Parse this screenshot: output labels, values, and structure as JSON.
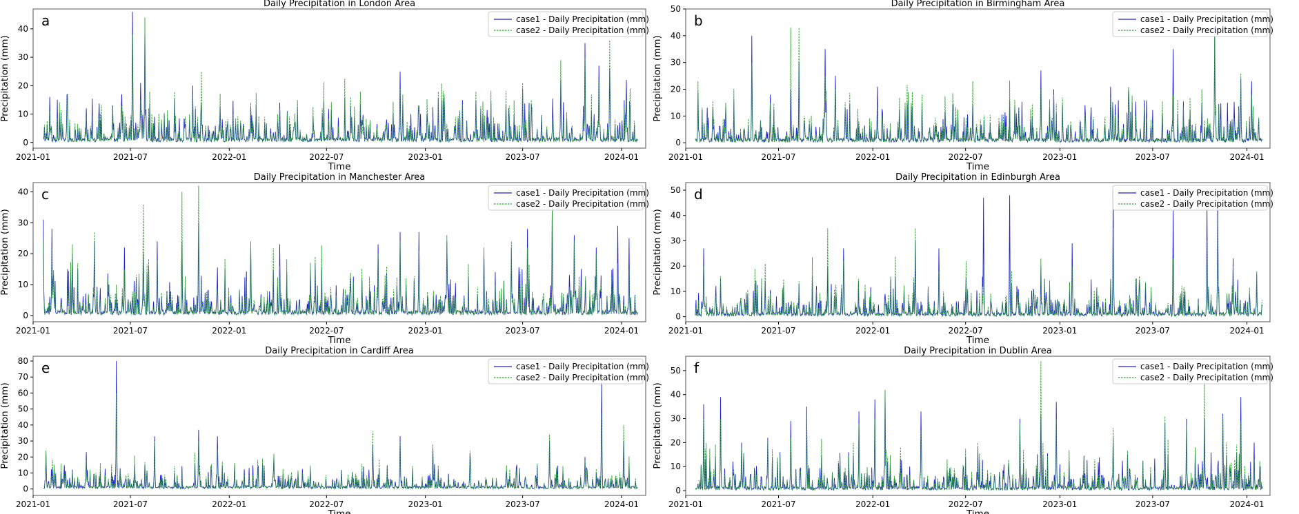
{
  "figure": {
    "xlabel": "Time",
    "ylabel": "Precipitation (mm)",
    "x_ticks": [
      "2021-01",
      "2021-07",
      "2022-01",
      "2022-07",
      "2023-01",
      "2023-07",
      "2024-01"
    ],
    "colors": {
      "case1": "#1f1fd6",
      "case2": "#2ca02c",
      "axes": "#555555"
    }
  },
  "chart_data": [
    {
      "panel": "a",
      "type": "line",
      "title": "Daily Precipitation in London Area",
      "xlabel": "Time",
      "ylabel": "Precipitation (mm)",
      "xlim": [
        "2021-01-01",
        "2024-02-15"
      ],
      "ylim": [
        -2,
        47
      ],
      "y_ticks": [
        0,
        10,
        20,
        30,
        40
      ],
      "legend": [
        "case1 - Daily Precipitation (mm)",
        "case2 - Daily Precipitation (mm)"
      ],
      "peaks": [
        {
          "date": "2021-02-01",
          "case1": 16,
          "case2": 11
        },
        {
          "date": "2021-03-05",
          "case1": 17,
          "case2": 14
        },
        {
          "date": "2021-04-10",
          "case1": 12,
          "case2": 9
        },
        {
          "date": "2021-06-15",
          "case1": 17,
          "case2": 13
        },
        {
          "date": "2021-07-05",
          "case1": 46,
          "case2": 38
        },
        {
          "date": "2021-07-20",
          "case1": 21,
          "case2": 15
        },
        {
          "date": "2021-07-28",
          "case1": 38,
          "case2": 44
        },
        {
          "date": "2021-10-25",
          "case1": 20,
          "case2": 17
        },
        {
          "date": "2021-11-10",
          "case1": 14,
          "case2": 25
        },
        {
          "date": "2022-02-10",
          "case1": 13,
          "case2": 14
        },
        {
          "date": "2022-04-05",
          "case1": 14,
          "case2": 12
        },
        {
          "date": "2022-08-15",
          "case1": 13,
          "case2": 16
        },
        {
          "date": "2022-11-15",
          "case1": 25,
          "case2": 19
        },
        {
          "date": "2022-12-20",
          "case1": 13,
          "case2": 12
        },
        {
          "date": "2023-02-05",
          "case1": 16,
          "case2": 17
        },
        {
          "date": "2023-04-05",
          "case1": 15,
          "case2": 18
        },
        {
          "date": "2023-06-05",
          "case1": 12,
          "case2": 10
        },
        {
          "date": "2023-07-01",
          "case1": 19,
          "case2": 21
        },
        {
          "date": "2023-09-10",
          "case1": 22,
          "case2": 29
        },
        {
          "date": "2023-10-25",
          "case1": 35,
          "case2": 30
        },
        {
          "date": "2023-11-20",
          "case1": 27,
          "case2": 22
        },
        {
          "date": "2023-12-10",
          "case1": 26,
          "case2": 36
        },
        {
          "date": "2024-01-10",
          "case1": 22,
          "case2": 15
        }
      ]
    },
    {
      "panel": "b",
      "type": "line",
      "title": "Daily Precipitation in Birmingham Area",
      "xlabel": "Time",
      "ylabel": "Precipitation (mm)",
      "xlim": [
        "2021-01-01",
        "2024-02-15"
      ],
      "ylim": [
        -2,
        50
      ],
      "y_ticks": [
        0,
        10,
        20,
        30,
        40,
        50
      ],
      "legend": [
        "case1 - Daily Precipitation (mm)",
        "case2 - Daily Precipitation (mm)"
      ],
      "peaks": [
        {
          "date": "2021-01-25",
          "case1": 19,
          "case2": 23
        },
        {
          "date": "2021-03-20",
          "case1": 14,
          "case2": 15
        },
        {
          "date": "2021-05-10",
          "case1": 40,
          "case2": 30
        },
        {
          "date": "2021-06-15",
          "case1": 18,
          "case2": 15
        },
        {
          "date": "2021-07-25",
          "case1": 20,
          "case2": 43
        },
        {
          "date": "2021-08-10",
          "case1": 30,
          "case2": 43
        },
        {
          "date": "2021-09-30",
          "case1": 35,
          "case2": 25
        },
        {
          "date": "2021-10-20",
          "case1": 25,
          "case2": 20
        },
        {
          "date": "2022-01-10",
          "case1": 21,
          "case2": 14
        },
        {
          "date": "2022-03-05",
          "case1": 13,
          "case2": 15
        },
        {
          "date": "2022-07-15",
          "case1": 14,
          "case2": 23
        },
        {
          "date": "2022-10-05",
          "case1": 14,
          "case2": 16
        },
        {
          "date": "2022-11-25",
          "case1": 27,
          "case2": 20
        },
        {
          "date": "2022-12-20",
          "case1": 20,
          "case2": 18
        },
        {
          "date": "2023-04-10",
          "case1": 21,
          "case2": 17
        },
        {
          "date": "2023-05-15",
          "case1": 20,
          "case2": 21
        },
        {
          "date": "2023-08-10",
          "case1": 35,
          "case2": 18
        },
        {
          "date": "2023-10-05",
          "case1": 15,
          "case2": 20
        },
        {
          "date": "2023-10-30",
          "case1": 43,
          "case2": 41
        },
        {
          "date": "2023-12-20",
          "case1": 24,
          "case2": 26
        },
        {
          "date": "2024-01-10",
          "case1": 23,
          "case2": 18
        }
      ]
    },
    {
      "panel": "c",
      "type": "line",
      "title": "Daily Precipitation in Manchester Area",
      "xlabel": "Time",
      "ylabel": "Precipitation (mm)",
      "xlim": [
        "2021-01-01",
        "2024-02-15"
      ],
      "ylim": [
        -2,
        43
      ],
      "y_ticks": [
        0,
        10,
        20,
        30,
        40
      ],
      "legend": [
        "case1 - Daily Precipitation (mm)",
        "case2 - Daily Precipitation (mm)"
      ],
      "peaks": [
        {
          "date": "2021-01-20",
          "case1": 31,
          "case2": 24
        },
        {
          "date": "2021-02-05",
          "case1": 28,
          "case2": 22
        },
        {
          "date": "2021-03-15",
          "case1": 20,
          "case2": 23
        },
        {
          "date": "2021-04-25",
          "case1": 24,
          "case2": 27
        },
        {
          "date": "2021-06-20",
          "case1": 22,
          "case2": 15
        },
        {
          "date": "2021-07-25",
          "case1": 20,
          "case2": 36
        },
        {
          "date": "2021-08-20",
          "case1": 24,
          "case2": 18
        },
        {
          "date": "2021-10-05",
          "case1": 24,
          "case2": 40
        },
        {
          "date": "2021-11-05",
          "case1": 30,
          "case2": 42
        },
        {
          "date": "2022-02-10",
          "case1": 22,
          "case2": 24
        },
        {
          "date": "2022-04-05",
          "case1": 23,
          "case2": 16
        },
        {
          "date": "2022-06-10",
          "case1": 17,
          "case2": 19
        },
        {
          "date": "2022-10-05",
          "case1": 23,
          "case2": 20
        },
        {
          "date": "2022-11-15",
          "case1": 27,
          "case2": 24
        },
        {
          "date": "2022-12-20",
          "case1": 27,
          "case2": 21
        },
        {
          "date": "2023-02-10",
          "case1": 24,
          "case2": 26
        },
        {
          "date": "2023-04-20",
          "case1": 21,
          "case2": 22
        },
        {
          "date": "2023-06-10",
          "case1": 22,
          "case2": 24
        },
        {
          "date": "2023-07-10",
          "case1": 28,
          "case2": 22
        },
        {
          "date": "2023-08-25",
          "case1": 35,
          "case2": 35
        },
        {
          "date": "2023-10-05",
          "case1": 26,
          "case2": 24
        },
        {
          "date": "2023-11-15",
          "case1": 22,
          "case2": 20
        },
        {
          "date": "2023-12-25",
          "case1": 29,
          "case2": 17
        },
        {
          "date": "2024-01-15",
          "case1": 25,
          "case2": 15
        }
      ]
    },
    {
      "panel": "d",
      "type": "line",
      "title": "Daily Precipitation in Edinburgh Area",
      "xlabel": "Time",
      "ylabel": "Precipitation (mm)",
      "xlim": [
        "2021-01-01",
        "2024-02-15"
      ],
      "ylim": [
        -2,
        53
      ],
      "y_ticks": [
        0,
        10,
        20,
        30,
        40,
        50
      ],
      "legend": [
        "case1 - Daily Precipitation (mm)",
        "case2 - Daily Precipitation (mm)"
      ],
      "peaks": [
        {
          "date": "2021-02-05",
          "case1": 27,
          "case2": 20
        },
        {
          "date": "2021-03-10",
          "case1": 15,
          "case2": 16
        },
        {
          "date": "2021-06-05",
          "case1": 14,
          "case2": 21
        },
        {
          "date": "2021-08-10",
          "case1": 13,
          "case2": 14
        },
        {
          "date": "2021-10-05",
          "case1": 20,
          "case2": 35
        },
        {
          "date": "2021-11-05",
          "case1": 27,
          "case2": 22
        },
        {
          "date": "2022-02-05",
          "case1": 15,
          "case2": 16
        },
        {
          "date": "2022-03-25",
          "case1": 30,
          "case2": 35
        },
        {
          "date": "2022-05-10",
          "case1": 27,
          "case2": 18
        },
        {
          "date": "2022-08-05",
          "case1": 47,
          "case2": 20
        },
        {
          "date": "2022-09-25",
          "case1": 48,
          "case2": 21
        },
        {
          "date": "2022-11-25",
          "case1": 20,
          "case2": 23
        },
        {
          "date": "2023-01-25",
          "case1": 29,
          "case2": 20
        },
        {
          "date": "2023-04-15",
          "case1": 50,
          "case2": 35
        },
        {
          "date": "2023-06-05",
          "case1": 14,
          "case2": 16
        },
        {
          "date": "2023-08-10",
          "case1": 42,
          "case2": 23
        },
        {
          "date": "2023-10-15",
          "case1": 44,
          "case2": 30
        },
        {
          "date": "2023-11-05",
          "case1": 48,
          "case2": 40
        },
        {
          "date": "2023-12-05",
          "case1": 23,
          "case2": 20
        },
        {
          "date": "2024-01-20",
          "case1": 17,
          "case2": 18
        }
      ]
    },
    {
      "panel": "e",
      "type": "line",
      "title": "Daily Precipitation in Cardiff Area",
      "xlabel": "Time",
      "ylabel": "Precipitation (mm)",
      "xlim": [
        "2021-01-01",
        "2024-02-15"
      ],
      "ylim": [
        -4,
        83
      ],
      "y_ticks": [
        0,
        10,
        20,
        30,
        40,
        50,
        60,
        70,
        80
      ],
      "legend": [
        "case1 - Daily Precipitation (mm)",
        "case2 - Daily Precipitation (mm)"
      ],
      "peaks": [
        {
          "date": "2021-01-25",
          "case1": 22,
          "case2": 24
        },
        {
          "date": "2021-04-10",
          "case1": 23,
          "case2": 18
        },
        {
          "date": "2021-06-05",
          "case1": 80,
          "case2": 60
        },
        {
          "date": "2021-08-15",
          "case1": 33,
          "case2": 30
        },
        {
          "date": "2021-11-05",
          "case1": 37,
          "case2": 30
        },
        {
          "date": "2021-12-10",
          "case1": 33,
          "case2": 25
        },
        {
          "date": "2022-03-25",
          "case1": 20,
          "case2": 22
        },
        {
          "date": "2022-09-25",
          "case1": 28,
          "case2": 36
        },
        {
          "date": "2022-11-15",
          "case1": 33,
          "case2": 30
        },
        {
          "date": "2023-01-15",
          "case1": 26,
          "case2": 28
        },
        {
          "date": "2023-03-25",
          "case1": 22,
          "case2": 24
        },
        {
          "date": "2023-06-25",
          "case1": 13,
          "case2": 12
        },
        {
          "date": "2023-08-20",
          "case1": 30,
          "case2": 34
        },
        {
          "date": "2023-10-25",
          "case1": 20,
          "case2": 18
        },
        {
          "date": "2023-11-25",
          "case1": 67,
          "case2": 47
        },
        {
          "date": "2024-01-05",
          "case1": 30,
          "case2": 40
        }
      ]
    },
    {
      "panel": "f",
      "type": "line",
      "title": "Daily Precipitation in Dublin Area",
      "xlabel": "Time",
      "ylabel": "Precipitation (mm)",
      "xlim": [
        "2021-01-01",
        "2024-02-15"
      ],
      "ylim": [
        -2,
        56
      ],
      "y_ticks": [
        0,
        10,
        20,
        30,
        40,
        50
      ],
      "legend": [
        "case1 - Daily Precipitation (mm)",
        "case2 - Daily Precipitation (mm)"
      ],
      "peaks": [
        {
          "date": "2021-02-05",
          "case1": 36,
          "case2": 30
        },
        {
          "date": "2021-03-10",
          "case1": 39,
          "case2": 30
        },
        {
          "date": "2021-04-20",
          "case1": 20,
          "case2": 18
        },
        {
          "date": "2021-06-10",
          "case1": 22,
          "case2": 21
        },
        {
          "date": "2021-07-25",
          "case1": 29,
          "case2": 22
        },
        {
          "date": "2021-08-25",
          "case1": 35,
          "case2": 32
        },
        {
          "date": "2021-12-05",
          "case1": 33,
          "case2": 28
        },
        {
          "date": "2022-01-05",
          "case1": 38,
          "case2": 30
        },
        {
          "date": "2022-01-25",
          "case1": 41,
          "case2": 42
        },
        {
          "date": "2022-04-05",
          "case1": 33,
          "case2": 25
        },
        {
          "date": "2022-07-25",
          "case1": 18,
          "case2": 20
        },
        {
          "date": "2022-10-15",
          "case1": 30,
          "case2": 28
        },
        {
          "date": "2022-11-25",
          "case1": 32,
          "case2": 54
        },
        {
          "date": "2022-12-25",
          "case1": 37,
          "case2": 30
        },
        {
          "date": "2023-04-15",
          "case1": 22,
          "case2": 26
        },
        {
          "date": "2023-07-25",
          "case1": 28,
          "case2": 31
        },
        {
          "date": "2023-09-05",
          "case1": 30,
          "case2": 27
        },
        {
          "date": "2023-10-10",
          "case1": 30,
          "case2": 46
        },
        {
          "date": "2023-11-15",
          "case1": 32,
          "case2": 31
        },
        {
          "date": "2023-12-20",
          "case1": 39,
          "case2": 29
        },
        {
          "date": "2024-01-15",
          "case1": 20,
          "case2": 13
        }
      ]
    }
  ]
}
